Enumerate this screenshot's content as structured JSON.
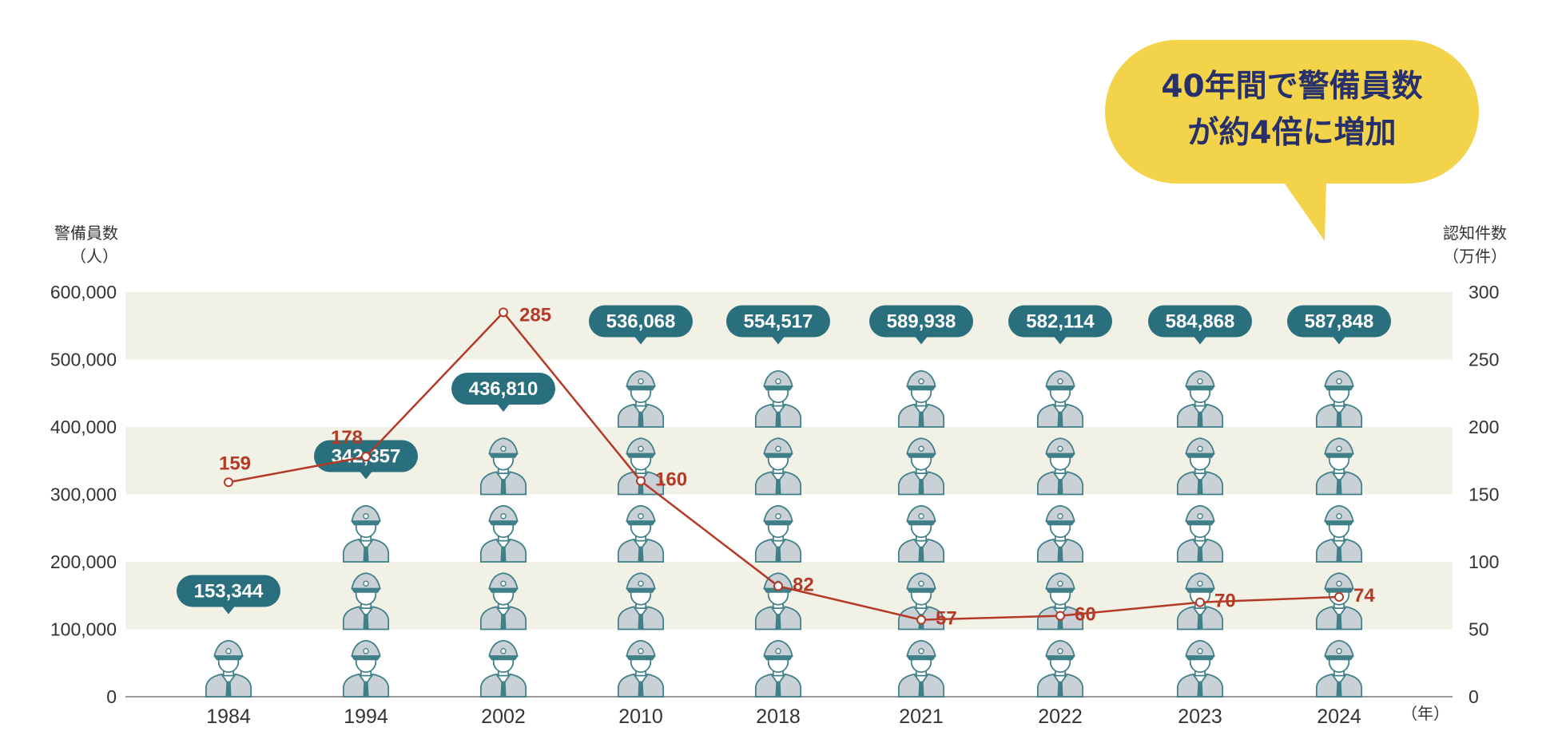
{
  "callout": {
    "line1": "40年間で警備員数",
    "line2": "が約4倍に増加"
  },
  "axes": {
    "left_title_1": "警備員数",
    "left_title_2": "（人）",
    "right_title_1": "認知件数",
    "right_title_2": "（万件）",
    "x_unit": "（年）"
  },
  "colors": {
    "band": "#f2f1e6",
    "bubble": "#2a6f7e",
    "line": "#b43a28",
    "guard_body": "#c9d0d6",
    "guard_outline": "#3f7f88",
    "callout": "#f3d34a",
    "callout_text": "#27306b"
  },
  "chart_data": {
    "type": "bar",
    "categories": [
      "1984",
      "1994",
      "2002",
      "2010",
      "2018",
      "2021",
      "2022",
      "2023",
      "2024"
    ],
    "series": [
      {
        "name": "警備員数",
        "axis": "left",
        "type": "pictograph",
        "values": [
          153344,
          342357,
          436810,
          536068,
          554517,
          589938,
          582114,
          584868,
          587848
        ],
        "labels": [
          "153,344",
          "342,357",
          "436,810",
          "536,068",
          "554,517",
          "589,938",
          "582,114",
          "584,868",
          "587,848"
        ]
      },
      {
        "name": "認知件数",
        "axis": "right",
        "type": "line",
        "values": [
          159,
          178,
          285,
          160,
          82,
          57,
          60,
          70,
          74
        ],
        "labels": [
          "159",
          "178",
          "285",
          "160",
          "82",
          "57",
          "60",
          "70",
          "74"
        ]
      }
    ],
    "y_left": {
      "ylim": [
        0,
        600000
      ],
      "ticks": [
        "0",
        "100,000",
        "200,000",
        "300,000",
        "400,000",
        "500,000",
        "600,000"
      ]
    },
    "y_right": {
      "ylim": [
        0,
        300
      ],
      "ticks": [
        "0",
        "50",
        "100",
        "150",
        "200",
        "250",
        "300"
      ]
    },
    "bands": "alternating shaded rows behind the chart",
    "legend": "none"
  }
}
